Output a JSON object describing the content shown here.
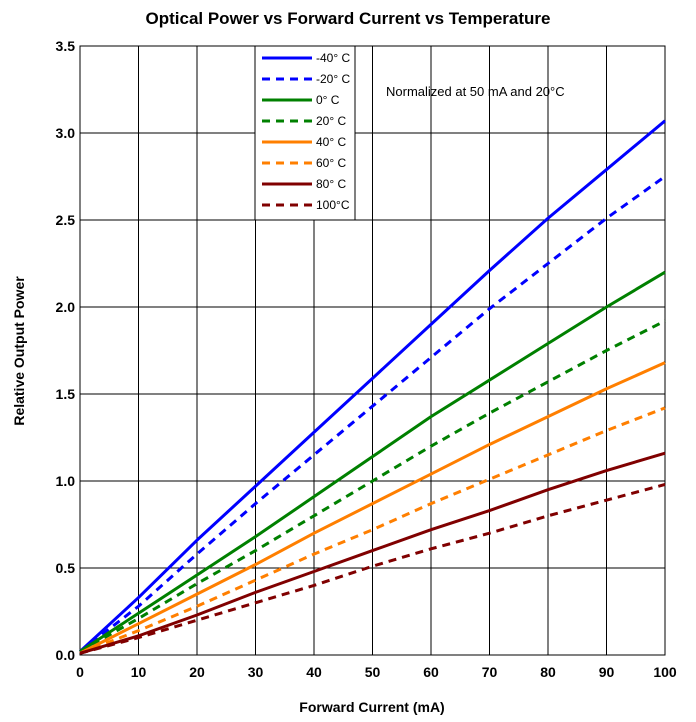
{
  "chart_data": {
    "type": "line",
    "title": "Optical Power vs Forward Current vs Temperature",
    "xlabel": "Forward Current (mA)",
    "ylabel": "Relative Output Power",
    "xlim": [
      0,
      100
    ],
    "ylim": [
      0,
      3.5
    ],
    "xticks": [
      0,
      10,
      20,
      30,
      40,
      50,
      60,
      70,
      80,
      90,
      100
    ],
    "yticks": [
      0.0,
      0.5,
      1.0,
      1.5,
      2.0,
      2.5,
      3.0,
      3.5
    ],
    "xtick_labels": [
      "0",
      "10",
      "20",
      "30",
      "40",
      "50",
      "60",
      "70",
      "80",
      "90",
      "100"
    ],
    "ytick_labels": [
      "0.0",
      "0.5",
      "1.0",
      "1.5",
      "2.0",
      "2.5",
      "3.0",
      "3.5"
    ],
    "grid": true,
    "legend_position": "top-center",
    "annotation": "Normalized at 50 mA and 20°C",
    "x": [
      0,
      10,
      20,
      30,
      40,
      50,
      60,
      70,
      80,
      90,
      100
    ],
    "series": [
      {
        "name": "-40° C",
        "color": "#0000ff",
        "dash": "solid",
        "values": [
          0.02,
          0.33,
          0.66,
          0.97,
          1.28,
          1.59,
          1.9,
          2.21,
          2.51,
          2.79,
          3.07
        ]
      },
      {
        "name": "-20° C",
        "color": "#0000ff",
        "dash": "dashed",
        "values": [
          0.02,
          0.28,
          0.58,
          0.87,
          1.15,
          1.43,
          1.71,
          1.99,
          2.25,
          2.51,
          2.75
        ]
      },
      {
        "name": "0° C",
        "color": "#008000",
        "dash": "solid",
        "values": [
          0.02,
          0.24,
          0.46,
          0.68,
          0.91,
          1.14,
          1.37,
          1.58,
          1.79,
          2.0,
          2.2
        ]
      },
      {
        "name": "20° C",
        "color": "#008000",
        "dash": "dashed",
        "values": [
          0.02,
          0.21,
          0.41,
          0.6,
          0.8,
          1.0,
          1.2,
          1.39,
          1.57,
          1.75,
          1.92
        ]
      },
      {
        "name": "40° C",
        "color": "#ff7f00",
        "dash": "solid",
        "values": [
          0.01,
          0.18,
          0.35,
          0.52,
          0.7,
          0.87,
          1.04,
          1.21,
          1.37,
          1.53,
          1.68
        ]
      },
      {
        "name": "60° C",
        "color": "#ff7f00",
        "dash": "dashed",
        "values": [
          0.01,
          0.14,
          0.28,
          0.43,
          0.58,
          0.72,
          0.87,
          1.01,
          1.15,
          1.29,
          1.42
        ]
      },
      {
        "name": "80° C",
        "color": "#800000",
        "dash": "solid",
        "values": [
          0.01,
          0.11,
          0.23,
          0.36,
          0.48,
          0.6,
          0.72,
          0.83,
          0.95,
          1.06,
          1.16
        ]
      },
      {
        "name": "100°C",
        "color": "#800000",
        "dash": "dashed",
        "values": [
          0.01,
          0.1,
          0.2,
          0.3,
          0.4,
          0.51,
          0.61,
          0.7,
          0.8,
          0.89,
          0.98
        ]
      }
    ]
  }
}
